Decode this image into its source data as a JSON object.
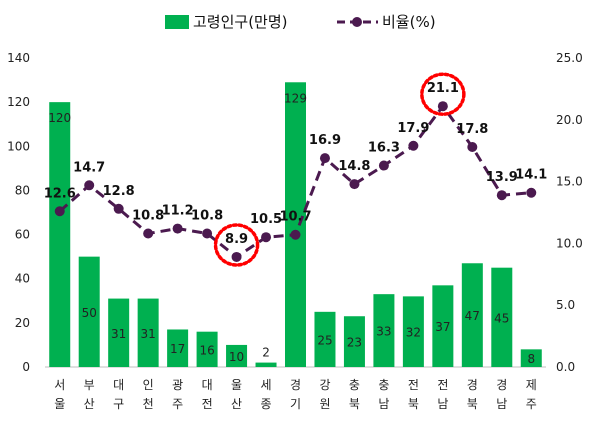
{
  "chart_data": {
    "type": "bar+line",
    "categories": [
      "서울",
      "부산",
      "대구",
      "인천",
      "광주",
      "대전",
      "울산",
      "세종",
      "경기",
      "강원",
      "충북",
      "충남",
      "전북",
      "전남",
      "경북",
      "경남",
      "제주"
    ],
    "category_chars": [
      [
        "서",
        "울"
      ],
      [
        "부",
        "산"
      ],
      [
        "대",
        "구"
      ],
      [
        "인",
        "천"
      ],
      [
        "광",
        "주"
      ],
      [
        "대",
        "전"
      ],
      [
        "울",
        "산"
      ],
      [
        "세",
        "종"
      ],
      [
        "경",
        "기"
      ],
      [
        "강",
        "원"
      ],
      [
        "충",
        "북"
      ],
      [
        "충",
        "남"
      ],
      [
        "전",
        "북"
      ],
      [
        "전",
        "남"
      ],
      [
        "경",
        "북"
      ],
      [
        "경",
        "남"
      ],
      [
        "제",
        "주"
      ]
    ],
    "series": [
      {
        "name": "고령인구(만명)",
        "type": "bar",
        "axis": "left",
        "color": "#00b050",
        "values": [
          120,
          50,
          31,
          31,
          17,
          16,
          10,
          2,
          129,
          25,
          23,
          33,
          32,
          37,
          47,
          45,
          8
        ],
        "labels": [
          "120",
          "50",
          "31",
          "31",
          "17",
          "16",
          "10",
          "2",
          "129",
          "25",
          "23",
          "33",
          "32",
          "37",
          "47",
          "45",
          "8"
        ]
      },
      {
        "name": "비율(%)",
        "type": "line",
        "axis": "right",
        "color": "#4b1a4f",
        "style": "dashed",
        "values": [
          12.6,
          14.7,
          12.8,
          10.8,
          11.2,
          10.8,
          8.9,
          10.5,
          10.7,
          16.9,
          14.8,
          16.3,
          17.9,
          21.1,
          17.8,
          13.9,
          14.1
        ],
        "labels": [
          "12.6",
          "14.7",
          "12.8",
          "10.8",
          "11.2",
          "10.8",
          "8.9",
          "10.5",
          "10.7",
          "16.9",
          "14.8",
          "16.3",
          "17.9",
          "21.1",
          "17.8",
          "13.9",
          "14.1"
        ]
      }
    ],
    "left_axis": {
      "min": 0,
      "max": 140,
      "ticks": [
        "0",
        "20",
        "40",
        "60",
        "80",
        "100",
        "120",
        "140"
      ]
    },
    "right_axis": {
      "min": 0,
      "max": 25,
      "ticks": [
        "0.0",
        "5.0",
        "10.0",
        "15.0",
        "20.0",
        "25.0"
      ]
    },
    "highlight_categories": [
      "울산",
      "전남"
    ],
    "highlight_color": "#ff0000",
    "legend_position": "top-center",
    "grid": false
  }
}
